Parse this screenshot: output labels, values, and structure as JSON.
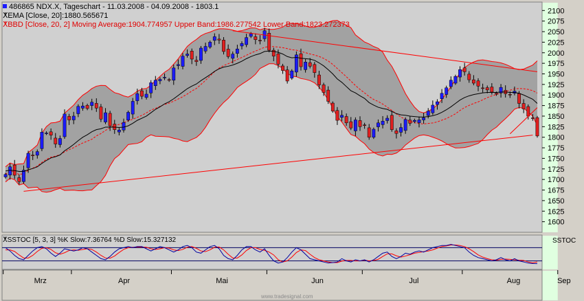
{
  "header": {
    "line1": "486865  NDX.X, Tageschart - 11.03.2008 - 04.09.2008 - 1803.1",
    "ema_legend": "EMA [Close, 20]:1880.565671",
    "bbd_legend": "BBD [Close, 20, 2] Moving Average:1904.774957 Upper Band:1986.277542 Lower Band:1823.272373",
    "sstoc_legend": "SSTOC [5, 3, 3] %K Slow:7.36764 %D Slow:15.327132"
  },
  "sub_panel_label": "SSTOC",
  "watermark": "www.tradesignal.com",
  "colors": {
    "bull": "#1c1cff",
    "bear": "#e02020",
    "band_fill": "#9c9c9c",
    "green_band": "#e0ffe0",
    "red": "#ff0000",
    "ema": "#000000"
  },
  "chart_data": [
    {
      "type": "candlestick",
      "title": "NDX.X, Tageschart - 11.03.2008 - 04.09.2008",
      "last": 1803.1,
      "ylim": [
        1575,
        2120
      ],
      "yticks": [
        1600,
        1625,
        1650,
        1675,
        1700,
        1725,
        1750,
        1775,
        1800,
        1825,
        1850,
        1875,
        1900,
        1925,
        1950,
        1975,
        2000,
        2025,
        2050,
        2075,
        2100
      ],
      "months": [
        "Mrz",
        "Apr",
        "Mai",
        "Jun",
        "Jul",
        "Aug",
        "Sep"
      ],
      "month_start_index": [
        0,
        15,
        37,
        58,
        79,
        101,
        122
      ],
      "green_shading_index_ranges": [
        [
          15,
          37
        ],
        [
          58,
          79
        ],
        [
          101,
          122
        ]
      ],
      "close": [
        1712,
        1730,
        1710,
        1695,
        1722,
        1762,
        1756,
        1766,
        1812,
        1810,
        1805,
        1784,
        1797,
        1855,
        1841,
        1850,
        1873,
        1874,
        1868,
        1883,
        1869,
        1843,
        1858,
        1827,
        1818,
        1817,
        1835,
        1859,
        1885,
        1903,
        1897,
        1902,
        1929,
        1935,
        1937,
        1942,
        1935,
        1964,
        1972,
        1992,
        1997,
        1985,
        1979,
        2011,
        2015,
        2025,
        2038,
        2030,
        2003,
        1991,
        1997,
        2009,
        2022,
        2036,
        2045,
        2031,
        2029,
        2052,
        2006,
        1992,
        1973,
        1958,
        1933,
        1957,
        1995,
        1967,
        1978,
        1968,
        1953,
        1924,
        1906,
        1885,
        1862,
        1840,
        1852,
        1834,
        1822,
        1841,
        1825,
        1828,
        1800,
        1819,
        1834,
        1838,
        1845,
        1818,
        1809,
        1823,
        1842,
        1833,
        1840,
        1841,
        1846,
        1862,
        1876,
        1884,
        1904,
        1917,
        1935,
        1944,
        1960,
        1955,
        1936,
        1928,
        1921,
        1916,
        1912,
        1907,
        1902,
        1918,
        1903,
        1900,
        1909,
        1880,
        1867,
        1850,
        1845,
        1803
      ],
      "ema20": [
        1720,
        1722,
        1721,
        1719,
        1719,
        1723,
        1726,
        1730,
        1738,
        1745,
        1751,
        1754,
        1758,
        1768,
        1775,
        1783,
        1792,
        1800,
        1806,
        1813,
        1818,
        1820,
        1824,
        1824,
        1824,
        1823,
        1824,
        1827,
        1833,
        1840,
        1845,
        1850,
        1858,
        1866,
        1872,
        1879,
        1884,
        1891,
        1899,
        1907,
        1915,
        1921,
        1926,
        1934,
        1941,
        1948,
        1956,
        1962,
        1966,
        1968,
        1971,
        1975,
        1980,
        1986,
        1991,
        1995,
        1998,
        2003,
        2004,
        2003,
        2001,
        1997,
        1991,
        1988,
        1989,
        1987,
        1986,
        1985,
        1982,
        1976,
        1969,
        1960,
        1950,
        1938,
        1930,
        1920,
        1910,
        1905,
        1898,
        1892,
        1882,
        1876,
        1871,
        1868,
        1866,
        1861,
        1856,
        1853,
        1852,
        1850,
        1849,
        1848,
        1848,
        1849,
        1851,
        1854,
        1859,
        1865,
        1872,
        1880,
        1888,
        1894,
        1898,
        1901,
        1903,
        1905,
        1906,
        1906,
        1906,
        1907,
        1907,
        1906,
        1906,
        1904,
        1900,
        1895,
        1890,
        1880
      ]
    },
    {
      "type": "line",
      "title": "SSTOC [5, 3, 3]",
      "ylim": [
        0,
        100
      ],
      "series": [
        {
          "name": "%K Slow",
          "last": 7.36764
        },
        {
          "name": "%D Slow",
          "last": 15.327132
        }
      ],
      "k_slow": [
        80,
        65,
        45,
        30,
        25,
        45,
        65,
        80,
        85,
        75,
        55,
        40,
        55,
        75,
        70,
        65,
        70,
        80,
        75,
        60,
        45,
        30,
        25,
        40,
        60,
        75,
        80,
        85,
        80,
        85,
        85,
        75,
        65,
        75,
        85,
        80,
        70,
        60,
        70,
        85,
        90,
        80,
        60,
        55,
        70,
        85,
        90,
        75,
        45,
        30,
        25,
        45,
        70,
        85,
        85,
        70,
        60,
        75,
        45,
        20,
        10,
        15,
        35,
        60,
        80,
        70,
        50,
        30,
        25,
        20,
        15,
        10,
        12,
        15,
        30,
        20,
        15,
        25,
        20,
        25,
        15,
        25,
        40,
        55,
        60,
        40,
        30,
        40,
        55,
        50,
        60,
        65,
        60,
        70,
        80,
        85,
        90,
        90,
        95,
        90,
        85,
        80,
        60,
        45,
        35,
        30,
        25,
        20,
        25,
        35,
        25,
        20,
        30,
        20,
        15,
        10,
        8,
        7.36764
      ],
      "d_slow": [
        70,
        70,
        63,
        47,
        33,
        33,
        45,
        63,
        77,
        80,
        72,
        57,
        50,
        57,
        67,
        70,
        68,
        72,
        75,
        72,
        60,
        45,
        33,
        32,
        42,
        58,
        72,
        80,
        82,
        83,
        83,
        82,
        75,
        72,
        75,
        80,
        78,
        70,
        67,
        72,
        82,
        85,
        77,
        65,
        62,
        70,
        82,
        83,
        70,
        50,
        33,
        33,
        47,
        67,
        80,
        80,
        72,
        68,
        60,
        47,
        25,
        15,
        20,
        37,
        58,
        70,
        67,
        50,
        35,
        25,
        20,
        15,
        12,
        12,
        19,
        22,
        22,
        20,
        20,
        23,
        20,
        22,
        27,
        40,
        52,
        52,
        43,
        37,
        42,
        48,
        55,
        58,
        62,
        65,
        70,
        78,
        85,
        88,
        92,
        92,
        90,
        85,
        75,
        62,
        47,
        37,
        30,
        25,
        23,
        27,
        28,
        27,
        25,
        23,
        22,
        15,
        11,
        15.327132
      ]
    }
  ]
}
